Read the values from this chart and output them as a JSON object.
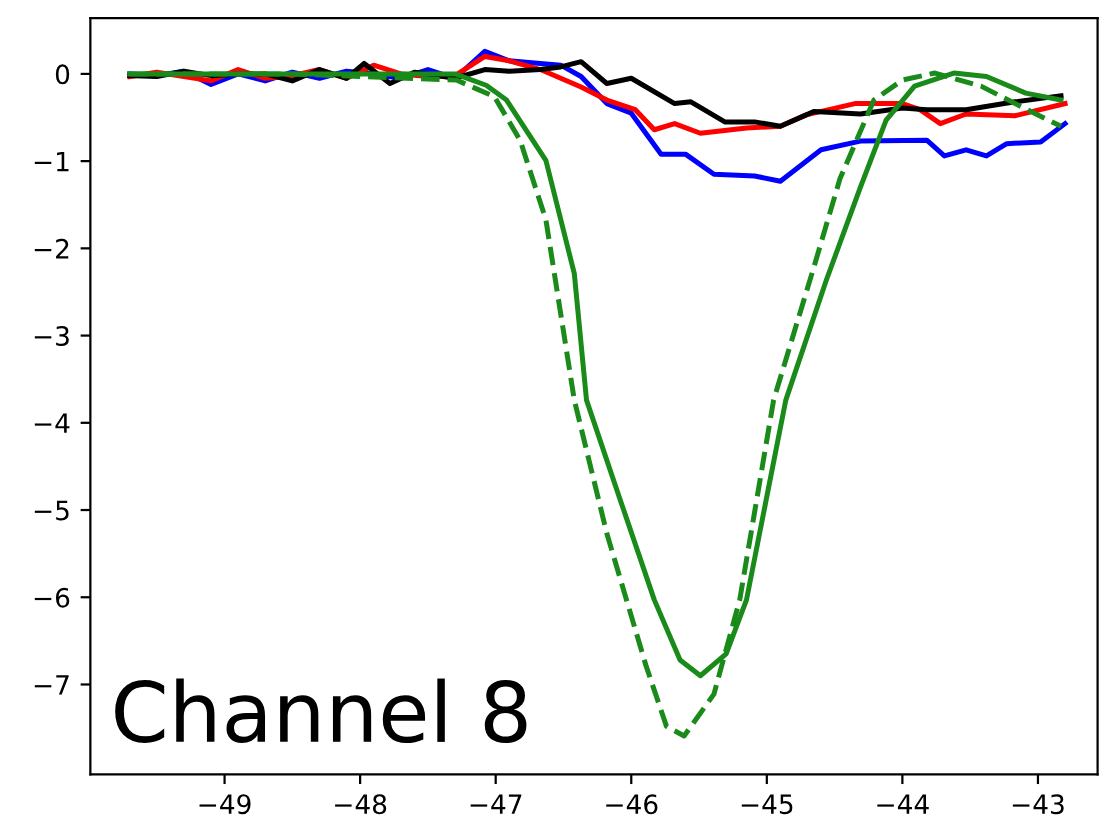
{
  "chart_data": {
    "type": "line",
    "annotations": [
      "Channel 8"
    ],
    "xlim": [
      -49.99,
      -42.56
    ],
    "ylim": [
      -8.03,
      0.64
    ],
    "xticks": [
      {
        "value": -49,
        "label": "−49"
      },
      {
        "value": -48,
        "label": "−48"
      },
      {
        "value": -47,
        "label": "−47"
      },
      {
        "value": -46,
        "label": "−46"
      },
      {
        "value": -45,
        "label": "−45"
      },
      {
        "value": -44,
        "label": "−44"
      },
      {
        "value": -43,
        "label": "−43"
      }
    ],
    "yticks": [
      {
        "value": 0,
        "label": "0"
      },
      {
        "value": -1,
        "label": "−1"
      },
      {
        "value": -2,
        "label": "−2"
      },
      {
        "value": -3,
        "label": "−3"
      },
      {
        "value": -4,
        "label": "−4"
      },
      {
        "value": -5,
        "label": "−5"
      },
      {
        "value": -6,
        "label": "−6"
      },
      {
        "value": -7,
        "label": "−7"
      }
    ],
    "grid": false,
    "legend": false,
    "marker": "none",
    "series": [
      {
        "color": "#0000ff",
        "line_style": "solid",
        "x": [
          -49.7,
          -49.5,
          -49.3,
          -49.1,
          -48.9,
          -48.7,
          -48.5,
          -48.3,
          -48.1,
          -47.9,
          -47.7,
          -47.5,
          -47.3,
          -47.08,
          -46.9,
          -46.67,
          -46.52,
          -46.37,
          -46.18,
          -46.0,
          -45.78,
          -45.6,
          -45.39,
          -45.09,
          -44.9,
          -44.6,
          -44.31,
          -43.82,
          -43.69,
          -43.53,
          -43.38,
          -43.23,
          -42.98,
          -42.8
        ],
        "values": [
          0.0,
          -0.02,
          0.03,
          -0.12,
          0.0,
          -0.08,
          0.02,
          -0.05,
          0.03,
          0.0,
          -0.05,
          0.05,
          -0.05,
          0.26,
          0.15,
          0.12,
          0.1,
          -0.03,
          -0.34,
          -0.45,
          -0.92,
          -0.92,
          -1.15,
          -1.17,
          -1.23,
          -0.87,
          -0.77,
          -0.76,
          -0.94,
          -0.87,
          -0.94,
          -0.8,
          -0.78,
          -0.57
        ]
      },
      {
        "color": "#ff0000",
        "line_style": "solid",
        "x": [
          -49.7,
          -49.5,
          -49.3,
          -49.1,
          -48.9,
          -48.7,
          -48.5,
          -48.3,
          -48.1,
          -47.9,
          -47.7,
          -47.5,
          -47.3,
          -47.08,
          -46.9,
          -46.67,
          -46.52,
          -46.37,
          -46.18,
          -45.97,
          -45.83,
          -45.68,
          -45.49,
          -45.15,
          -44.9,
          -44.71,
          -44.35,
          -44.0,
          -43.87,
          -43.72,
          -43.53,
          -43.17,
          -42.8
        ],
        "values": [
          -0.03,
          0.02,
          -0.03,
          -0.08,
          0.05,
          -0.05,
          -0.02,
          0.05,
          -0.05,
          0.1,
          0.0,
          -0.03,
          -0.02,
          0.2,
          0.15,
          0.05,
          -0.05,
          -0.15,
          -0.3,
          -0.41,
          -0.64,
          -0.57,
          -0.68,
          -0.62,
          -0.6,
          -0.47,
          -0.34,
          -0.34,
          -0.41,
          -0.57,
          -0.46,
          -0.48,
          -0.34
        ]
      },
      {
        "color": "#000000",
        "line_style": "solid",
        "x": [
          -49.7,
          -49.5,
          -49.3,
          -49.1,
          -48.9,
          -48.7,
          -48.5,
          -48.3,
          -48.1,
          -47.97,
          -47.78,
          -47.6,
          -47.3,
          -47.08,
          -46.9,
          -46.67,
          -46.52,
          -46.37,
          -46.18,
          -46.0,
          -45.68,
          -45.56,
          -45.31,
          -45.09,
          -44.9,
          -44.65,
          -44.31,
          -44.0,
          -43.82,
          -43.53,
          -43.17,
          -42.83
        ],
        "values": [
          -0.02,
          -0.03,
          0.03,
          -0.02,
          0.0,
          0.0,
          -0.08,
          0.05,
          -0.05,
          0.12,
          -0.11,
          0.02,
          -0.05,
          0.05,
          0.03,
          0.05,
          0.08,
          0.14,
          -0.11,
          -0.05,
          -0.34,
          -0.32,
          -0.55,
          -0.55,
          -0.6,
          -0.43,
          -0.46,
          -0.39,
          -0.41,
          -0.41,
          -0.32,
          -0.25
        ]
      },
      {
        "color": "#1a8a1a",
        "line_style": "solid",
        "x": [
          -49.7,
          -48.5,
          -47.3,
          -47.07,
          -46.92,
          -46.63,
          -46.42,
          -46.33,
          -46.08,
          -45.83,
          -45.64,
          -45.49,
          -45.3,
          -45.15,
          -44.86,
          -44.56,
          -44.31,
          -44.12,
          -43.91,
          -43.62,
          -43.38,
          -43.09,
          -42.83
        ],
        "values": [
          0.0,
          0.0,
          0.0,
          -0.13,
          -0.3,
          -0.99,
          -2.29,
          -3.74,
          -4.89,
          -6.03,
          -6.72,
          -6.9,
          -6.65,
          -6.03,
          -3.74,
          -2.36,
          -1.3,
          -0.53,
          -0.14,
          0.01,
          -0.03,
          -0.22,
          -0.3
        ]
      },
      {
        "color": "#1a8a1a",
        "line_style": "dashed",
        "x": [
          -49.7,
          -48.5,
          -47.29,
          -47.01,
          -46.82,
          -46.63,
          -46.42,
          -46.18,
          -45.89,
          -45.74,
          -45.61,
          -45.39,
          -45.2,
          -44.95,
          -44.65,
          -44.46,
          -44.21,
          -44.0,
          -43.76,
          -43.42,
          -43.13,
          -42.83
        ],
        "values": [
          0.0,
          0.0,
          -0.07,
          -0.26,
          -0.76,
          -1.67,
          -3.74,
          -5.27,
          -6.79,
          -7.48,
          -7.59,
          -7.11,
          -6.03,
          -3.74,
          -2.2,
          -1.2,
          -0.3,
          -0.07,
          0.01,
          -0.14,
          -0.37,
          -0.6
        ]
      }
    ]
  }
}
